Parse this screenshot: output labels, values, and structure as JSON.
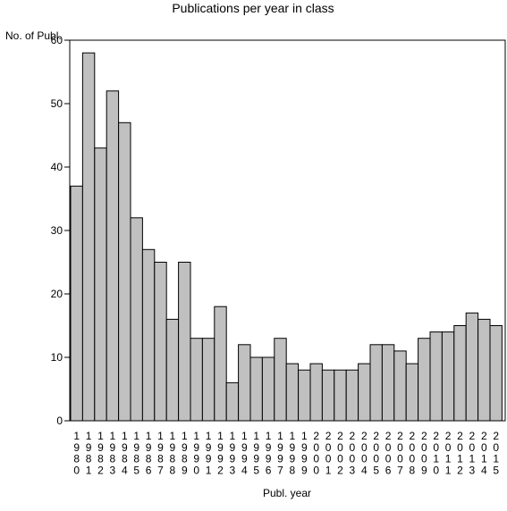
{
  "chart_data": {
    "type": "bar",
    "title": "Publications per year in class",
    "ylabel": "No. of Publ.",
    "xlabel": "Publ. year",
    "ylim": [
      0,
      60
    ],
    "yticks": [
      0,
      10,
      20,
      30,
      40,
      50,
      60
    ],
    "categories": [
      "1980",
      "1981",
      "1982",
      "1983",
      "1984",
      "1985",
      "1986",
      "1987",
      "1988",
      "1989",
      "1990",
      "1991",
      "1992",
      "1993",
      "1994",
      "1995",
      "1996",
      "1997",
      "1998",
      "1999",
      "2000",
      "2001",
      "2002",
      "2003",
      "2004",
      "2005",
      "2006",
      "2007",
      "2008",
      "2009",
      "2010",
      "2011",
      "2012",
      "2013",
      "2014",
      "2015"
    ],
    "values": [
      37,
      58,
      43,
      52,
      47,
      32,
      27,
      25,
      16,
      25,
      13,
      13,
      18,
      6,
      12,
      10,
      10,
      13,
      9,
      8,
      9,
      8,
      8,
      8,
      9,
      12,
      12,
      11,
      9,
      13,
      14,
      14,
      15,
      17,
      16,
      15
    ],
    "bar_fill": "#c0c0c0",
    "bar_stroke": "#000000",
    "grid": false,
    "legend": "none"
  }
}
